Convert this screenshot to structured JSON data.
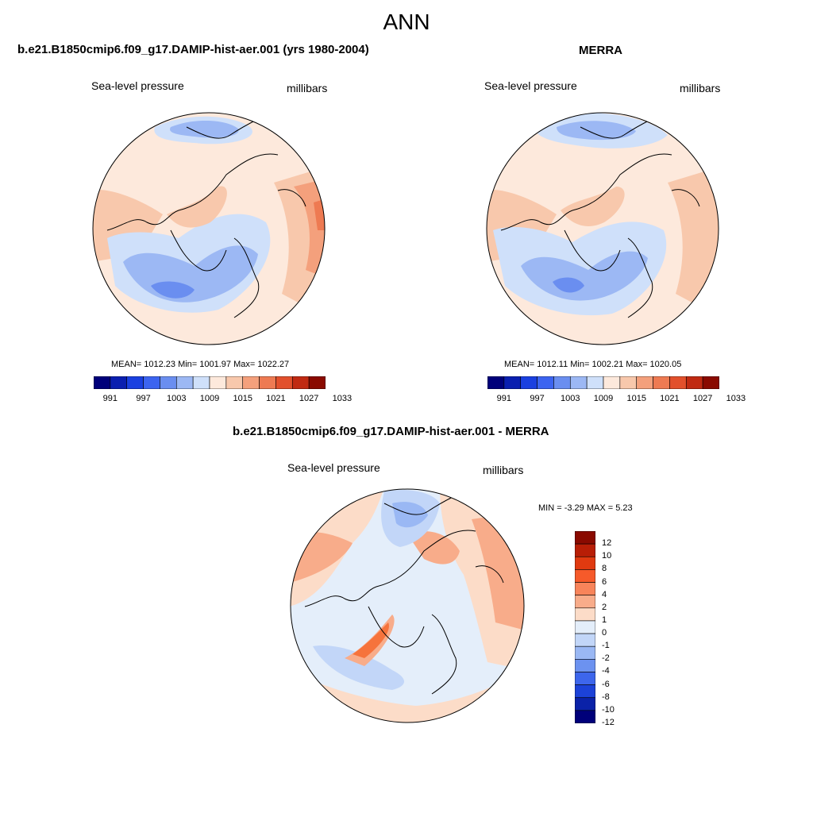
{
  "title": "ANN",
  "panels": [
    {
      "title": "b.e21.B1850cmip6.f09_g17.DAMIP-hist-aer.001 (yrs 1980-2004)",
      "left_label": "Sea-level pressure",
      "right_label": "millibars",
      "stats": "MEAN= 1012.23  Min= 1001.97  Max= 1022.27"
    },
    {
      "title": "MERRA",
      "left_label": "Sea-level pressure",
      "right_label": "millibars",
      "stats": "MEAN= 1012.11  Min= 1002.21  Max= 1020.05"
    },
    {
      "title": "b.e21.B1850cmip6.f09_g17.DAMIP-hist-aer.001 - MERRA",
      "left_label": "Sea-level pressure",
      "right_label": "millibars",
      "stats": "MIN =  -3.29 MAX =   5.23"
    }
  ],
  "abs_colorbar": {
    "colors": [
      "#00007a",
      "#0a1fb0",
      "#1a40e0",
      "#3c64f0",
      "#6a8ef0",
      "#9cb8f4",
      "#cfe0fa",
      "#fde9dc",
      "#f8c8ac",
      "#f4a07c",
      "#ee7a52",
      "#e2502c",
      "#c02a12",
      "#8a0a00"
    ],
    "ticks": [
      "991",
      "997",
      "1003",
      "1009",
      "1015",
      "1021",
      "1027",
      "1033"
    ]
  },
  "diff_colorbar": {
    "colors": [
      "#8a0a00",
      "#b81e06",
      "#e03a10",
      "#f65a2a",
      "#f8845a",
      "#f8ac8a",
      "#fcdcc8",
      "#e4eefa",
      "#c2d6f8",
      "#9ab8f4",
      "#6c92f0",
      "#3d66ec",
      "#1c42d8",
      "#0a22a8",
      "#00007a"
    ],
    "ticks": [
      "12",
      "10",
      "8",
      "6",
      "4",
      "2",
      "1",
      "0",
      "-1",
      "-2",
      "-4",
      "-6",
      "-8",
      "-10",
      "-12"
    ]
  }
}
